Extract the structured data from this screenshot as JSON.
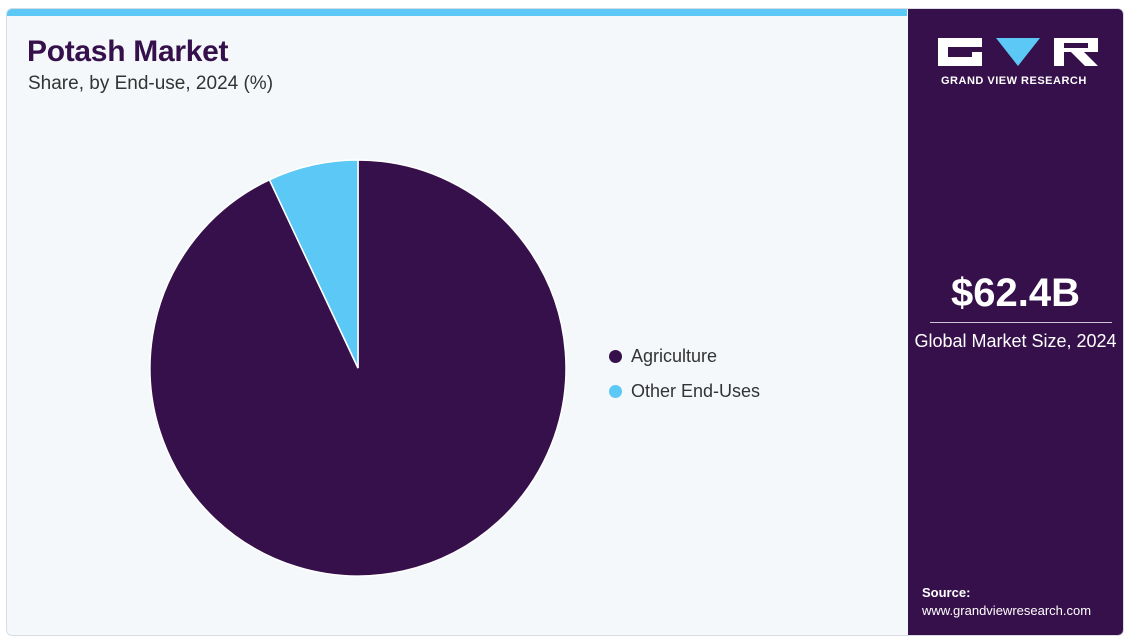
{
  "header": {
    "title": "Potash Market",
    "subtitle": "Share, by End-use, 2024 (%)"
  },
  "chart_data": {
    "type": "pie",
    "title": "Potash Market",
    "subtitle": "Share, by End-use, 2024 (%)",
    "categories": [
      "Agriculture",
      "Other End-Uses"
    ],
    "values": [
      93,
      7
    ],
    "colors": [
      "#36104a",
      "#5bc8f5"
    ],
    "start_angle_deg": 0,
    "direction": "clockwise",
    "legend_position": "right"
  },
  "sidebar": {
    "logo_text": "GRAND VIEW RESEARCH",
    "market_size": "$62.4B",
    "market_size_label": "Global Market Size, 2024",
    "source_label": "Source:",
    "source_url": "www.grandviewresearch.com"
  },
  "icons": {
    "logo": "gvr-logo-icon"
  }
}
